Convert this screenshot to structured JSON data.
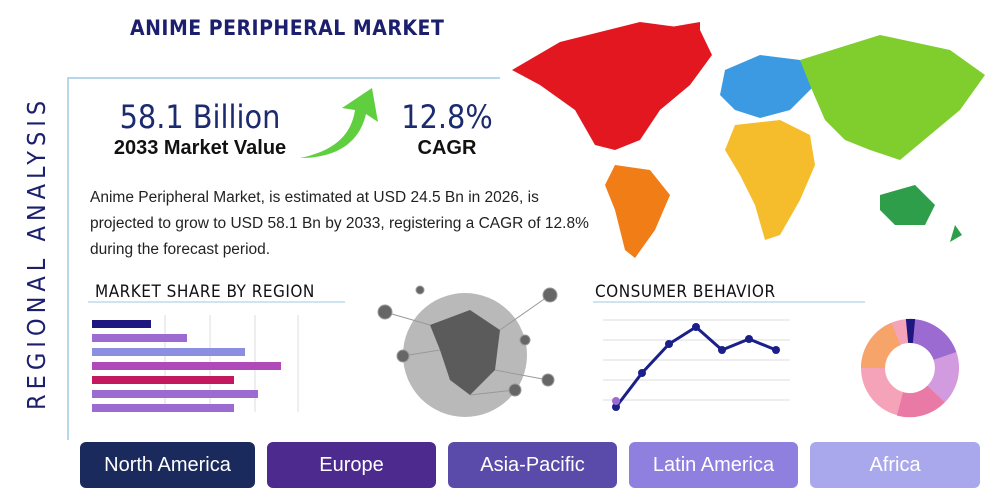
{
  "header": {
    "title": "ANIME PERIPHERAL MARKET",
    "side_title": "REGIONAL ANALYSIS"
  },
  "stats": [
    {
      "value": "58.1 Billion",
      "label": "2033 Market Value"
    },
    {
      "value": "12.8%",
      "label": "CAGR"
    }
  ],
  "description": "Anime Peripheral Market, is estimated at USD 24.5 Bn in 2026, is projected to grow to USD 58.1 Bn by 2033, registering a CAGR of 12.8% during the forecast period.",
  "sections": {
    "market_share": "MARKET SHARE BY REGION",
    "consumer_behavior": "CONSUMER BEHAVIOR"
  },
  "regions": [
    "North America",
    "Europe",
    "Asia-Pacific",
    "Latin America",
    "Africa"
  ]
}
